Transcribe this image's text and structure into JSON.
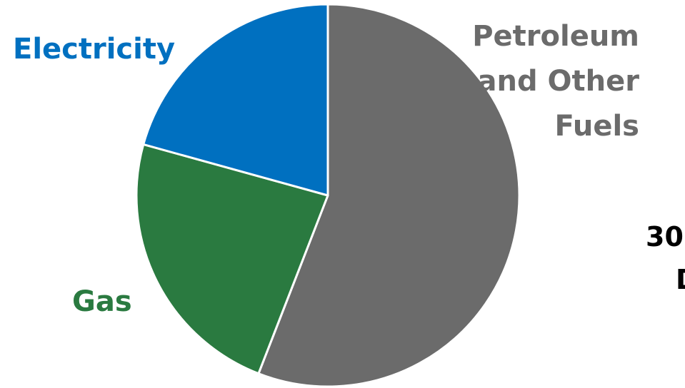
{
  "chart_data": {
    "type": "pie",
    "slices": [
      {
        "label": "Petroleum and Other Fuels",
        "label_lines": [
          "Petroleum",
          "and Other",
          "Fuels"
        ],
        "value": 55.9,
        "color": "#6b6b6b"
      },
      {
        "label": "Gas",
        "value": 23.4,
        "color": "#2a7a40"
      },
      {
        "label": "Electricity",
        "value": 20.7,
        "color": "#0070c0"
      }
    ],
    "start": "12 o'clock",
    "direction": "clockwise",
    "slice_border_color": "#ffffff"
  },
  "cut_off_text": [
    "30",
    "D"
  ]
}
